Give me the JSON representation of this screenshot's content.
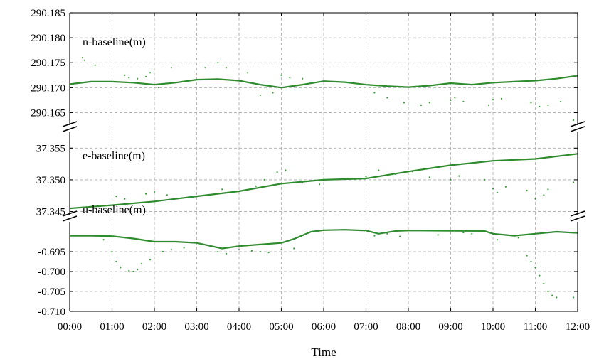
{
  "chart_data": {
    "type": "line",
    "xlabel": "Time",
    "x_ticks": [
      "00:00",
      "01:00",
      "02:00",
      "03:00",
      "04:00",
      "05:00",
      "06:00",
      "07:00",
      "08:00",
      "09:00",
      "10:00",
      "11:00",
      "12:00"
    ],
    "xlim": [
      0,
      12
    ],
    "line_color": "#2e8b2e",
    "point_color": "#3a9a3a",
    "grid": true,
    "panels": [
      {
        "name": "n-baseline(m)",
        "ylim": [
          290.1625,
          290.185
        ],
        "y_ticks": [
          "290.165",
          "290.170",
          "290.175",
          "290.180",
          "290.185"
        ],
        "series": [
          {
            "kind": "line",
            "x": [
              0,
              0.5,
              1,
              1.5,
              2,
              2.5,
              3,
              3.5,
              4,
              4.5,
              5,
              5.5,
              6,
              6.5,
              7,
              7.5,
              8,
              8.5,
              9,
              9.5,
              10,
              10.5,
              11,
              11.5,
              12
            ],
            "y": [
              290.1707,
              290.1712,
              290.1712,
              290.171,
              290.1706,
              290.171,
              290.1716,
              290.1717,
              290.1714,
              290.1706,
              290.17,
              290.1706,
              290.1713,
              290.1711,
              290.1706,
              290.1703,
              290.1701,
              290.1704,
              290.1709,
              290.1706,
              290.171,
              290.1712,
              290.1714,
              290.1718,
              290.1724
            ]
          },
          {
            "kind": "points",
            "x": [
              0.3,
              0.35,
              0.6,
              1.3,
              1.4,
              1.6,
              1.8,
              1.9,
              2.1,
              2.4,
              3.2,
              3.5,
              3.7,
              4.2,
              4.5,
              4.8,
              5.0,
              5.2,
              5.5,
              7.2,
              7.5,
              7.9,
              8.3,
              8.5,
              9.0,
              9.1,
              9.3,
              9.9,
              10.0,
              10.2,
              10.9,
              11.1,
              11.3,
              11.6,
              11.9
            ],
            "y": [
              290.176,
              290.1755,
              290.1745,
              290.1725,
              290.172,
              290.1718,
              290.1722,
              290.173,
              290.17,
              290.174,
              290.174,
              290.175,
              290.174,
              290.173,
              290.1685,
              290.169,
              290.1725,
              290.172,
              290.1718,
              290.169,
              290.168,
              290.167,
              290.1665,
              290.167,
              290.1675,
              290.168,
              290.1672,
              290.1665,
              290.1676,
              290.1678,
              290.167,
              290.1662,
              290.1665,
              290.1672,
              290.1635
            ]
          }
        ]
      },
      {
        "name": "e-baseline(m)",
        "ylim": [
          37.3445,
          37.3575
        ],
        "y_ticks": [
          "37.345",
          "37.350",
          "37.355"
        ],
        "series": [
          {
            "kind": "line",
            "x": [
              0,
              1,
              2,
              3,
              4,
              5,
              6,
              7,
              8,
              9,
              10,
              11,
              12
            ],
            "y": [
              37.3455,
              37.346,
              37.3466,
              37.3474,
              37.3482,
              37.3494,
              37.35,
              37.3502,
              37.3513,
              37.3523,
              37.353,
              37.3533,
              37.3541
            ]
          },
          {
            "kind": "points",
            "x": [
              1.1,
              1.3,
              1.8,
              2.0,
              2.3,
              3.6,
              4.4,
              4.6,
              4.9,
              5.1,
              5.5,
              5.9,
              7.0,
              7.3,
              7.7,
              8.1,
              8.5,
              9.0,
              9.2,
              9.8,
              10.0,
              10.1,
              10.3,
              10.8,
              11.0,
              11.2,
              11.3,
              11.9
            ],
            "y": [
              37.3474,
              37.347,
              37.3478,
              37.3481,
              37.3476,
              37.3485,
              37.349,
              37.35,
              37.3512,
              37.3515,
              37.3496,
              37.3493,
              37.3505,
              37.3515,
              37.3509,
              37.3513,
              37.3504,
              37.35,
              37.3506,
              37.35,
              37.3486,
              37.348,
              37.3489,
              37.3483,
              37.347,
              37.3476,
              37.3485,
              37.3496
            ]
          }
        ]
      },
      {
        "name": "u-baseline(m)",
        "ylim": [
          -0.71,
          -0.6875
        ],
        "y_ticks": [
          "-0.710",
          "-0.705",
          "-0.700",
          "-0.695"
        ],
        "series": [
          {
            "kind": "line",
            "x": [
              0,
              0.5,
              1,
              1.5,
              2,
              2.5,
              3,
              3.3,
              3.6,
              4,
              4.5,
              5,
              5.3,
              5.7,
              6,
              6.5,
              7,
              7.3,
              7.7,
              8,
              8.3,
              9.8,
              10,
              10.5,
              11,
              11.5,
              12
            ],
            "y": [
              -0.691,
              -0.691,
              -0.6911,
              -0.6917,
              -0.6925,
              -0.6925,
              -0.6928,
              -0.6935,
              -0.6942,
              -0.6936,
              -0.6932,
              -0.6928,
              -0.6918,
              -0.69,
              -0.6896,
              -0.6895,
              -0.6897,
              -0.6905,
              -0.6898,
              -0.6897,
              -0.6897,
              -0.6898,
              -0.6905,
              -0.691,
              -0.6905,
              -0.69,
              -0.6903
            ]
          },
          {
            "kind": "points",
            "x": [
              0.8,
              1.0,
              1.1,
              1.2,
              1.4,
              1.5,
              1.6,
              1.7,
              1.9,
              2.2,
              2.4,
              2.7,
              3.5,
              3.7,
              4.0,
              4.3,
              4.5,
              4.7,
              5.0,
              5.3,
              7.2,
              7.5,
              7.8,
              8.7,
              9.3,
              9.5,
              10.1,
              10.6,
              10.8,
              10.9,
              11.0,
              11.1,
              11.2,
              11.3,
              11.4,
              11.5,
              11.9
            ],
            "y": [
              -0.692,
              -0.695,
              -0.6975,
              -0.699,
              -0.6998,
              -0.7,
              -0.6995,
              -0.698,
              -0.697,
              -0.695,
              -0.6945,
              -0.694,
              -0.695,
              -0.6955,
              -0.6945,
              -0.6948,
              -0.695,
              -0.6952,
              -0.6945,
              -0.6942,
              -0.691,
              -0.6905,
              -0.6912,
              -0.6908,
              -0.6902,
              -0.6905,
              -0.692,
              -0.6915,
              -0.696,
              -0.6975,
              -0.699,
              -0.701,
              -0.703,
              -0.705,
              -0.706,
              -0.7065,
              -0.7065
            ]
          }
        ]
      }
    ]
  }
}
